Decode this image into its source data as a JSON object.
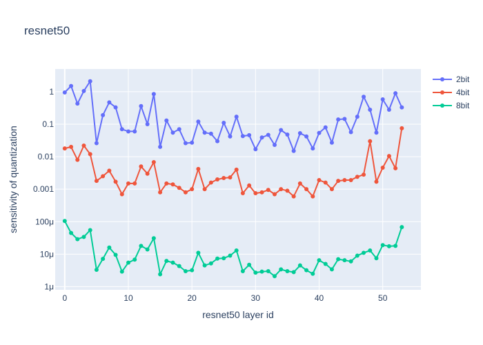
{
  "chart_data": {
    "type": "line",
    "title": "resnet50",
    "xlabel": "resnet50 layer id",
    "ylabel": "sensitivity of quantization",
    "yscale": "log",
    "xlim": [
      -1.5,
      56
    ],
    "ylim": [
      8e-07,
      5
    ],
    "x_ticks": [
      0,
      10,
      20,
      30,
      40,
      50
    ],
    "y_ticks": [
      {
        "value": 1e-06,
        "label": "1μ"
      },
      {
        "value": 1e-05,
        "label": "10μ"
      },
      {
        "value": 0.0001,
        "label": "100μ"
      },
      {
        "value": 0.001,
        "label": "0.001"
      },
      {
        "value": 0.01,
        "label": "0.01"
      },
      {
        "value": 0.1,
        "label": "0.1"
      },
      {
        "value": 1,
        "label": "1"
      }
    ],
    "grid": true,
    "legend_position": "top-right",
    "x": [
      0,
      1,
      2,
      3,
      4,
      5,
      6,
      7,
      8,
      9,
      10,
      11,
      12,
      13,
      14,
      15,
      16,
      17,
      18,
      19,
      20,
      21,
      22,
      23,
      24,
      25,
      26,
      27,
      28,
      29,
      30,
      31,
      32,
      33,
      34,
      35,
      36,
      37,
      38,
      39,
      40,
      41,
      42,
      43,
      44,
      45,
      46,
      47,
      48,
      49,
      50,
      51,
      52,
      53
    ],
    "series": [
      {
        "name": "2bit",
        "color": "#636efa",
        "values": [
          0.95,
          1.5,
          0.43,
          1.05,
          2.1,
          0.026,
          0.19,
          0.47,
          0.33,
          0.07,
          0.06,
          0.06,
          0.36,
          0.1,
          0.85,
          0.02,
          0.13,
          0.055,
          0.07,
          0.026,
          0.027,
          0.12,
          0.055,
          0.051,
          0.03,
          0.11,
          0.042,
          0.17,
          0.043,
          0.046,
          0.017,
          0.039,
          0.047,
          0.023,
          0.066,
          0.048,
          0.015,
          0.053,
          0.042,
          0.018,
          0.054,
          0.08,
          0.027,
          0.14,
          0.145,
          0.057,
          0.17,
          0.7,
          0.28,
          0.055,
          0.58,
          0.28,
          0.9,
          0.33
        ]
      },
      {
        "name": "4bit",
        "color": "#ef553b",
        "values": [
          0.018,
          0.02,
          0.008,
          0.022,
          0.012,
          0.0018,
          0.0025,
          0.0037,
          0.0017,
          0.0007,
          0.0015,
          0.0015,
          0.005,
          0.003,
          0.0068,
          0.0008,
          0.0015,
          0.0014,
          0.0011,
          0.0008,
          0.001,
          0.0042,
          0.001,
          0.0016,
          0.002,
          0.0022,
          0.0023,
          0.004,
          0.00075,
          0.0013,
          0.00075,
          0.0008,
          0.00095,
          0.0007,
          0.001,
          0.0009,
          0.0006,
          0.0015,
          0.001,
          0.0006,
          0.0019,
          0.0016,
          0.001,
          0.0018,
          0.0019,
          0.0019,
          0.0024,
          0.0028,
          0.03,
          0.0017,
          0.0046,
          0.0105,
          0.0044,
          0.075
        ]
      },
      {
        "name": "8bit",
        "color": "#00cc96",
        "values": [
          0.000105,
          4.5e-05,
          2.9e-05,
          3.4e-05,
          5.5e-05,
          3.3e-06,
          7.2e-06,
          1.6e-05,
          9.5e-06,
          2.9e-06,
          5.5e-06,
          6.8e-06,
          1.8e-05,
          1.4e-05,
          3.1e-05,
          2.4e-06,
          6.2e-06,
          5.5e-06,
          4.3e-06,
          3e-06,
          3.2e-06,
          1.1e-05,
          4.5e-06,
          5.2e-06,
          7.3e-06,
          7.5e-06,
          9e-06,
          1.3e-05,
          3e-06,
          4.7e-06,
          2.7e-06,
          2.9e-06,
          3e-06,
          2.1e-06,
          3.4e-06,
          3e-06,
          2.8e-06,
          4.5e-06,
          3.2e-06,
          2.5e-06,
          6.5e-06,
          5e-06,
          3.4e-06,
          7e-06,
          6.5e-06,
          6e-06,
          9e-06,
          1.1e-05,
          1.3e-05,
          7.5e-06,
          1.9e-05,
          1.75e-05,
          1.8e-05,
          6.8e-05
        ]
      }
    ]
  }
}
